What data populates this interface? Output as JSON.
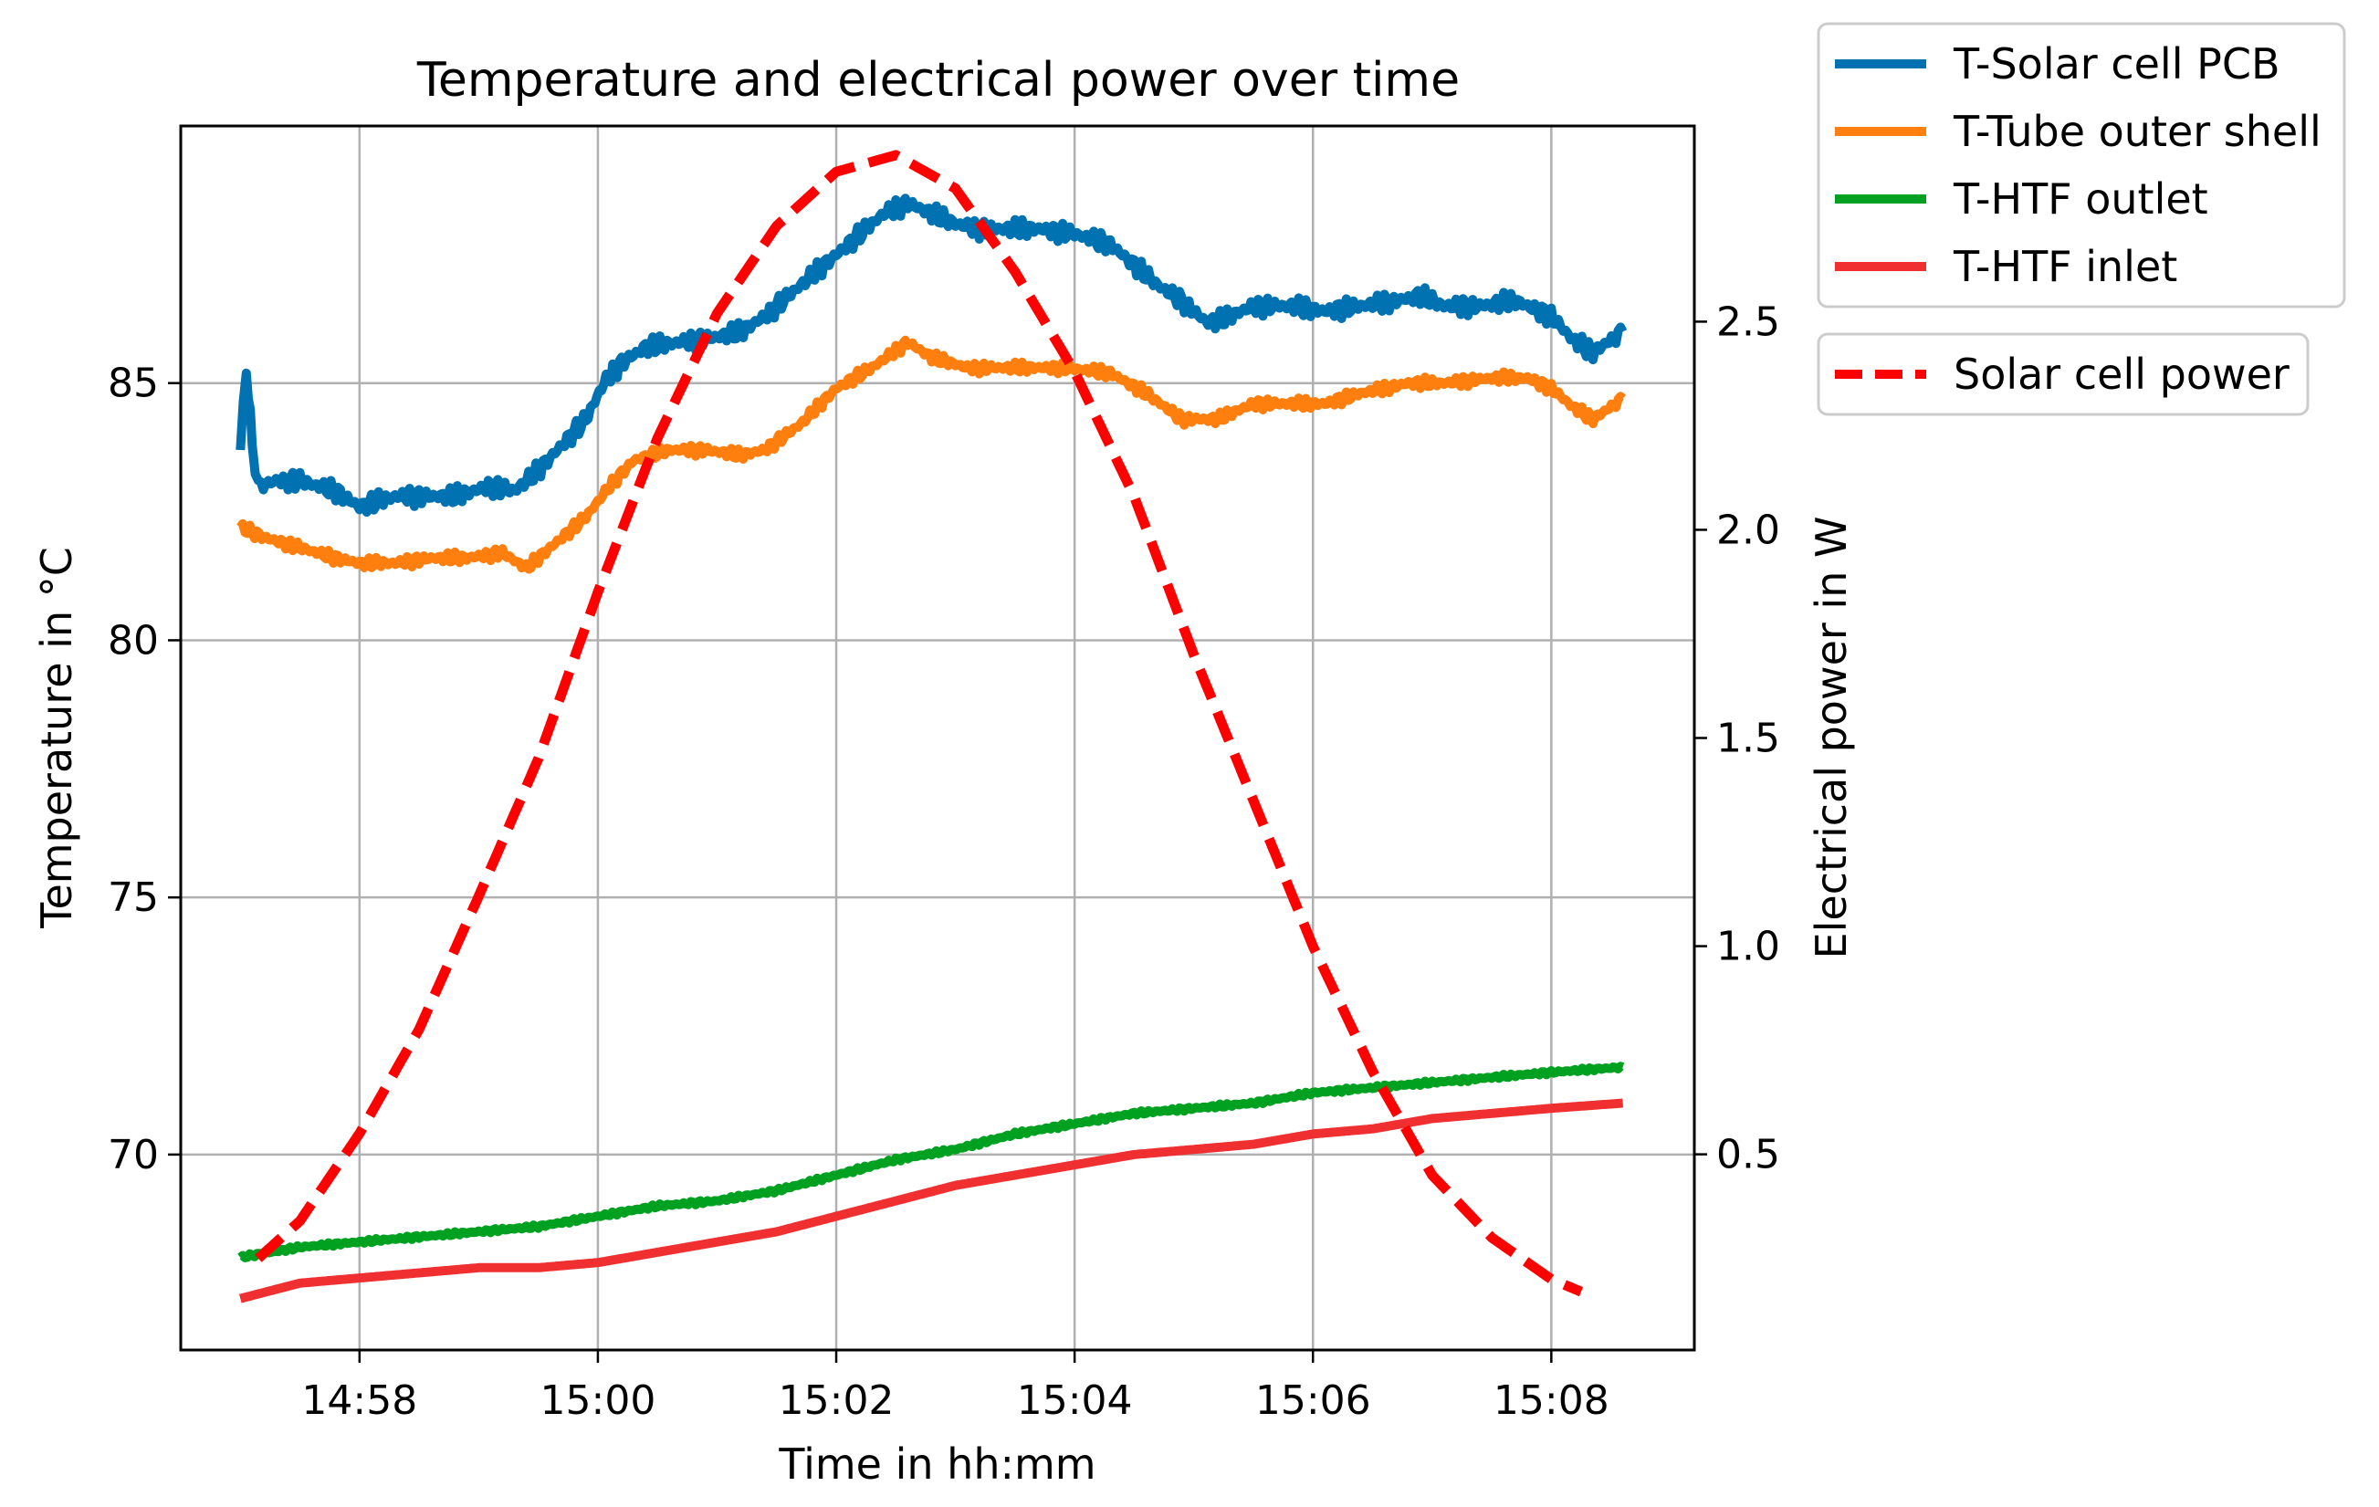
{
  "chart_data": {
    "type": "line",
    "title": "Temperature and electrical power over time",
    "xlabel": "Time in hh:mm",
    "ylabel_left": "Temperature in °C",
    "ylabel_right": "Electrical power in W",
    "grid": true,
    "xlim_minutes": [
      -3.5,
      9.2
    ],
    "xlim_time": [
      "14:56:30",
      "15:09:12"
    ],
    "x_ticks": [
      {
        "value": -2,
        "label": "14:58"
      },
      {
        "value": 0,
        "label": "15:00"
      },
      {
        "value": 2,
        "label": "15:02"
      },
      {
        "value": 4,
        "label": "15:04"
      },
      {
        "value": 6,
        "label": "15:06"
      },
      {
        "value": 8,
        "label": "15:08"
      }
    ],
    "ylim_left": [
      66.2,
      90.0
    ],
    "y_ticks_left": [
      {
        "value": 70,
        "label": "70"
      },
      {
        "value": 75,
        "label": "75"
      },
      {
        "value": 80,
        "label": "80"
      },
      {
        "value": 85,
        "label": "85"
      }
    ],
    "ylim_right": [
      0.03,
      2.97
    ],
    "y_ticks_right": [
      {
        "value": 0.5,
        "label": "0.5"
      },
      {
        "value": 1.0,
        "label": "1.0"
      },
      {
        "value": 1.5,
        "label": "1.5"
      },
      {
        "value": 2.0,
        "label": "2.0"
      },
      {
        "value": 2.5,
        "label": "2.5"
      }
    ],
    "legends": [
      {
        "position": "outside-top-right",
        "entries": [
          "T-Solar cell PCB",
          "T-Tube outer shell",
          "T-HTF outlet",
          "T-HTF inlet"
        ]
      },
      {
        "position": "outside-right",
        "entries": [
          "Solar cell power"
        ]
      }
    ],
    "series": [
      {
        "name": "T-Solar cell PCB",
        "axis": "left",
        "color": "#0072b2",
        "style": "solid",
        "wiggle": 0.2,
        "points": [
          [
            -3.0,
            83.7
          ],
          [
            -2.95,
            85.3
          ],
          [
            -2.9,
            83.8
          ],
          [
            -2.85,
            83.0
          ],
          [
            -2.7,
            83.1
          ],
          [
            -2.5,
            83.1
          ],
          [
            -2.2,
            82.9
          ],
          [
            -2.0,
            82.6
          ],
          [
            -1.7,
            82.8
          ],
          [
            -1.4,
            82.8
          ],
          [
            -1.2,
            82.8
          ],
          [
            -0.9,
            83.0
          ],
          [
            -0.7,
            82.9
          ],
          [
            -0.5,
            83.3
          ],
          [
            -0.3,
            83.8
          ],
          [
            -0.1,
            84.3
          ],
          [
            0.05,
            85.0
          ],
          [
            0.2,
            85.4
          ],
          [
            0.4,
            85.7
          ],
          [
            0.7,
            85.8
          ],
          [
            1.0,
            85.9
          ],
          [
            1.2,
            86.0
          ],
          [
            1.4,
            86.3
          ],
          [
            1.6,
            86.7
          ],
          [
            1.8,
            87.1
          ],
          [
            2.0,
            87.5
          ],
          [
            2.2,
            87.9
          ],
          [
            2.4,
            88.3
          ],
          [
            2.6,
            88.5
          ],
          [
            2.8,
            88.3
          ],
          [
            3.0,
            88.1
          ],
          [
            3.2,
            88.0
          ],
          [
            3.5,
            88.0
          ],
          [
            3.7,
            88.0
          ],
          [
            4.0,
            87.9
          ],
          [
            4.3,
            87.7
          ],
          [
            4.5,
            87.3
          ],
          [
            4.7,
            86.9
          ],
          [
            4.9,
            86.6
          ],
          [
            5.1,
            86.2
          ],
          [
            5.2,
            86.2
          ],
          [
            5.5,
            86.5
          ],
          [
            5.8,
            86.5
          ],
          [
            6.1,
            86.4
          ],
          [
            6.4,
            86.5
          ],
          [
            6.7,
            86.6
          ],
          [
            6.9,
            86.7
          ],
          [
            7.1,
            86.5
          ],
          [
            7.4,
            86.5
          ],
          [
            7.7,
            86.6
          ],
          [
            8.0,
            86.3
          ],
          [
            8.2,
            85.8
          ],
          [
            8.35,
            85.6
          ],
          [
            8.6,
            86.0
          ]
        ]
      },
      {
        "name": "T-Tube outer shell",
        "axis": "left",
        "color": "#ff7f0e",
        "style": "solid",
        "wiggle": 0.12,
        "points": [
          [
            -3.0,
            82.2
          ],
          [
            -2.8,
            82.0
          ],
          [
            -2.5,
            81.8
          ],
          [
            -2.2,
            81.6
          ],
          [
            -2.0,
            81.5
          ],
          [
            -1.7,
            81.5
          ],
          [
            -1.4,
            81.6
          ],
          [
            -1.1,
            81.6
          ],
          [
            -0.8,
            81.7
          ],
          [
            -0.6,
            81.4
          ],
          [
            -0.4,
            81.8
          ],
          [
            -0.1,
            82.4
          ],
          [
            0.1,
            83.0
          ],
          [
            0.3,
            83.5
          ],
          [
            0.6,
            83.7
          ],
          [
            0.9,
            83.7
          ],
          [
            1.2,
            83.6
          ],
          [
            1.4,
            83.7
          ],
          [
            1.7,
            84.2
          ],
          [
            2.0,
            84.9
          ],
          [
            2.3,
            85.3
          ],
          [
            2.6,
            85.8
          ],
          [
            2.8,
            85.5
          ],
          [
            3.1,
            85.3
          ],
          [
            3.5,
            85.3
          ],
          [
            3.9,
            85.3
          ],
          [
            4.3,
            85.2
          ],
          [
            4.6,
            84.8
          ],
          [
            4.9,
            84.3
          ],
          [
            5.2,
            84.3
          ],
          [
            5.5,
            84.6
          ],
          [
            5.8,
            84.6
          ],
          [
            6.1,
            84.6
          ],
          [
            6.4,
            84.8
          ],
          [
            6.8,
            85.0
          ],
          [
            7.1,
            85.0
          ],
          [
            7.5,
            85.1
          ],
          [
            7.8,
            85.1
          ],
          [
            8.0,
            84.9
          ],
          [
            8.2,
            84.5
          ],
          [
            8.35,
            84.3
          ],
          [
            8.6,
            84.7
          ]
        ]
      },
      {
        "name": "T-HTF outlet",
        "axis": "left",
        "color": "#00a020",
        "style": "solid",
        "wiggle": 0.04,
        "points": [
          [
            -3.0,
            68.0
          ],
          [
            -2.5,
            68.2
          ],
          [
            -2.0,
            68.3
          ],
          [
            -1.5,
            68.4
          ],
          [
            -1.0,
            68.5
          ],
          [
            -0.5,
            68.6
          ],
          [
            0.0,
            68.8
          ],
          [
            0.5,
            69.0
          ],
          [
            1.0,
            69.1
          ],
          [
            1.5,
            69.3
          ],
          [
            2.0,
            69.6
          ],
          [
            2.5,
            69.9
          ],
          [
            3.0,
            70.1
          ],
          [
            3.5,
            70.4
          ],
          [
            4.0,
            70.6
          ],
          [
            4.5,
            70.8
          ],
          [
            5.0,
            70.9
          ],
          [
            5.5,
            71.0
          ],
          [
            6.0,
            71.2
          ],
          [
            6.5,
            71.3
          ],
          [
            7.0,
            71.4
          ],
          [
            7.5,
            71.5
          ],
          [
            8.0,
            71.6
          ],
          [
            8.6,
            71.7
          ]
        ]
      },
      {
        "name": "T-HTF inlet",
        "axis": "left",
        "color": "#f03030",
        "style": "solid",
        "wiggle": 0.0,
        "points": [
          [
            -3.0,
            67.2
          ],
          [
            -2.5,
            67.5
          ],
          [
            -2.0,
            67.6
          ],
          [
            -1.5,
            67.7
          ],
          [
            -1.0,
            67.8
          ],
          [
            -0.5,
            67.8
          ],
          [
            0.0,
            67.9
          ],
          [
            0.5,
            68.1
          ],
          [
            1.0,
            68.3
          ],
          [
            1.5,
            68.5
          ],
          [
            2.0,
            68.8
          ],
          [
            2.5,
            69.1
          ],
          [
            3.0,
            69.4
          ],
          [
            3.5,
            69.6
          ],
          [
            4.0,
            69.8
          ],
          [
            4.5,
            70.0
          ],
          [
            5.0,
            70.1
          ],
          [
            5.5,
            70.2
          ],
          [
            6.0,
            70.4
          ],
          [
            6.5,
            70.5
          ],
          [
            7.0,
            70.7
          ],
          [
            7.5,
            70.8
          ],
          [
            8.0,
            70.9
          ],
          [
            8.6,
            71.0
          ]
        ]
      },
      {
        "name": "Solar cell power",
        "axis": "right",
        "color": "#ff0000",
        "style": "dashed",
        "points": [
          [
            -2.85,
            0.25
          ],
          [
            -2.5,
            0.34
          ],
          [
            -2.0,
            0.55
          ],
          [
            -1.5,
            0.8
          ],
          [
            -1.0,
            1.12
          ],
          [
            -0.5,
            1.45
          ],
          [
            0.0,
            1.85
          ],
          [
            0.5,
            2.22
          ],
          [
            1.0,
            2.52
          ],
          [
            1.5,
            2.73
          ],
          [
            2.0,
            2.86
          ],
          [
            2.5,
            2.9
          ],
          [
            3.0,
            2.82
          ],
          [
            3.5,
            2.62
          ],
          [
            4.0,
            2.38
          ],
          [
            4.5,
            2.08
          ],
          [
            5.0,
            1.7
          ],
          [
            5.5,
            1.35
          ],
          [
            6.0,
            1.0
          ],
          [
            6.5,
            0.7
          ],
          [
            7.0,
            0.45
          ],
          [
            7.5,
            0.3
          ],
          [
            8.0,
            0.2
          ],
          [
            8.25,
            0.17
          ]
        ]
      }
    ]
  }
}
